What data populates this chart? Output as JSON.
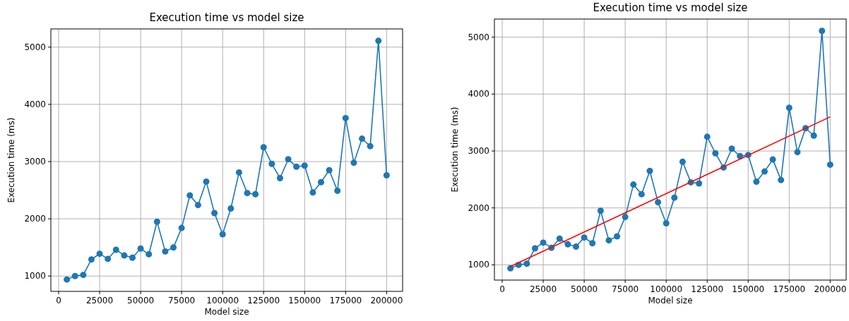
{
  "chart_data": [
    {
      "type": "line",
      "title": "Execution time vs model size",
      "xlabel": "Model size",
      "ylabel": "Execution time (ms)",
      "xlim": [
        -4750,
        209750
      ],
      "ylim": [
        732,
        5318
      ],
      "xticks": [
        0,
        25000,
        50000,
        75000,
        100000,
        125000,
        150000,
        175000,
        200000
      ],
      "yticks": [
        1000,
        2000,
        3000,
        4000,
        5000
      ],
      "grid": true,
      "marker": "circle",
      "series": [
        {
          "color": "#1f77b4",
          "x": [
            5000,
            10000,
            15000,
            20000,
            25000,
            30000,
            35000,
            40000,
            45000,
            50000,
            55000,
            60000,
            65000,
            70000,
            75000,
            80000,
            85000,
            90000,
            95000,
            100000,
            105000,
            110000,
            115000,
            120000,
            125000,
            130000,
            135000,
            140000,
            145000,
            150000,
            155000,
            160000,
            165000,
            170000,
            175000,
            180000,
            185000,
            190000,
            195000,
            200000
          ],
          "values": [
            940,
            1000,
            1020,
            1290,
            1390,
            1300,
            1460,
            1360,
            1320,
            1480,
            1380,
            1950,
            1430,
            1500,
            1840,
            2410,
            2240,
            2650,
            2100,
            1730,
            2180,
            2810,
            2450,
            2430,
            3250,
            2960,
            2710,
            3040,
            2910,
            2930,
            2460,
            2640,
            2850,
            2490,
            3760,
            2980,
            3400,
            3270,
            5110,
            2760
          ]
        }
      ]
    },
    {
      "type": "line",
      "title": "Execution time vs model size",
      "xlabel": "Model size",
      "ylabel": "Execution time (ms)",
      "xlim": [
        -4750,
        209750
      ],
      "ylim": [
        732,
        5318
      ],
      "xticks": [
        0,
        25000,
        50000,
        75000,
        100000,
        125000,
        150000,
        175000,
        200000
      ],
      "yticks": [
        1000,
        2000,
        3000,
        4000,
        5000
      ],
      "grid": true,
      "marker": "circle",
      "series": [
        {
          "color": "#1f77b4",
          "x": [
            5000,
            10000,
            15000,
            20000,
            25000,
            30000,
            35000,
            40000,
            45000,
            50000,
            55000,
            60000,
            65000,
            70000,
            75000,
            80000,
            85000,
            90000,
            95000,
            100000,
            105000,
            110000,
            115000,
            120000,
            125000,
            130000,
            135000,
            140000,
            145000,
            150000,
            155000,
            160000,
            165000,
            170000,
            175000,
            180000,
            185000,
            190000,
            195000,
            200000
          ],
          "values": [
            940,
            1000,
            1020,
            1290,
            1390,
            1300,
            1460,
            1360,
            1320,
            1480,
            1380,
            1950,
            1430,
            1500,
            1840,
            2410,
            2240,
            2650,
            2100,
            1730,
            2180,
            2810,
            2450,
            2430,
            3250,
            2960,
            2710,
            3040,
            2910,
            2930,
            2460,
            2640,
            2850,
            2490,
            3760,
            2980,
            3400,
            3270,
            5110,
            2760
          ]
        },
        {
          "type": "line",
          "color": "#ff0000",
          "marker": "none",
          "x": [
            5000,
            200000
          ],
          "values": [
            970,
            3600
          ]
        }
      ]
    }
  ]
}
